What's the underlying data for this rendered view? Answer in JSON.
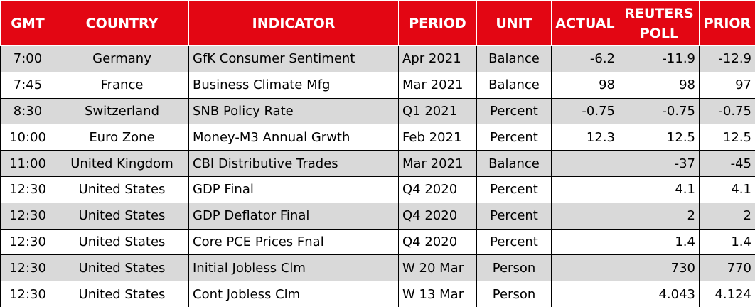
{
  "table": {
    "header": [
      "GMT",
      "COUNTRY",
      "INDICATOR",
      "PERIOD",
      "UNIT",
      "ACTUAL",
      "REUTERS POLL",
      "PRIOR"
    ],
    "rows": [
      [
        "7:00",
        "Germany",
        "GfK Consumer Sentiment",
        "Apr 2021",
        "Balance",
        -6.2,
        -11.9,
        -12.9
      ],
      [
        "7:45",
        "France",
        "Business Climate Mfg",
        "Mar 2021",
        "Balance",
        98,
        98,
        97
      ],
      [
        "8:30",
        "Switzerland",
        "SNB Policy Rate",
        "Q1 2021",
        "Percent",
        -0.75,
        -0.75,
        -0.75
      ],
      [
        "10:00",
        "Euro Zone",
        "Money-M3 Annual Grwth",
        "Feb 2021",
        "Percent",
        12.3,
        12.5,
        12.5
      ],
      [
        "11:00",
        "United Kingdom",
        "CBI Distributive Trades",
        "Mar 2021",
        "Balance",
        null,
        -37,
        -45
      ],
      [
        "12:30",
        "United States",
        "GDP Final",
        "Q4 2020",
        "Percent",
        null,
        4.1,
        4.1
      ],
      [
        "12:30",
        "United States",
        "GDP Deflator Final",
        "Q4 2020",
        "Percent",
        null,
        2,
        2
      ],
      [
        "12:30",
        "United States",
        "Core PCE Prices Fnal",
        "Q4 2020",
        "Percent",
        null,
        1.4,
        1.4
      ],
      [
        "12:30",
        "United States",
        "Initial Jobless Clm",
        "W 20 Mar",
        "Person",
        null,
        730,
        770
      ],
      [
        "12:30",
        "United States",
        "Cont Jobless Clm",
        "W 13 Mar",
        "Person",
        null,
        4.043,
        4.124
      ]
    ]
  }
}
